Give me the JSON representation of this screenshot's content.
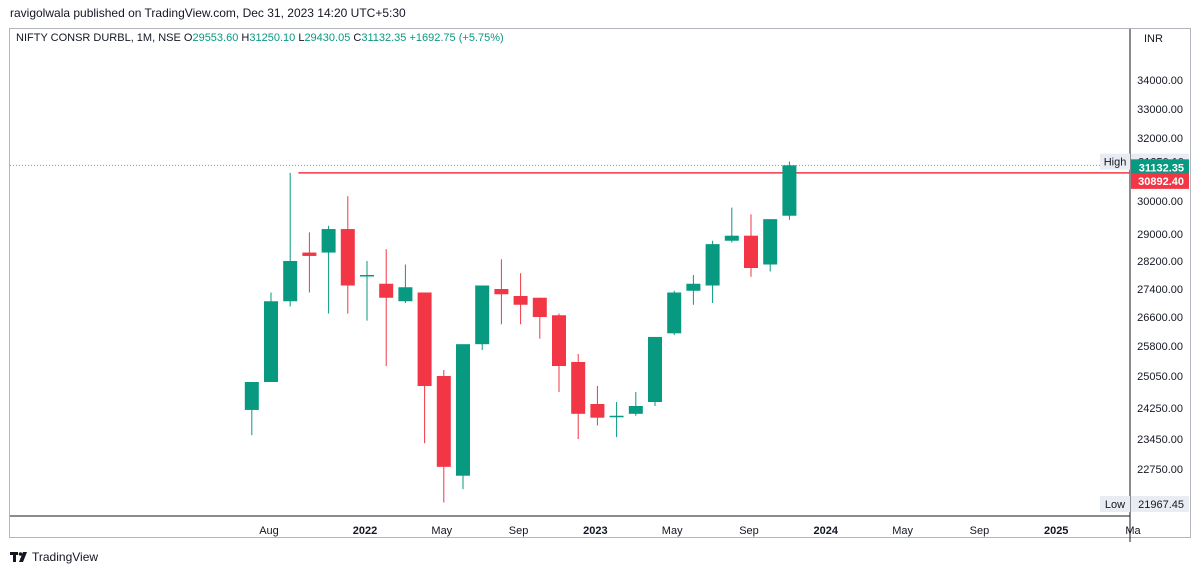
{
  "publisher_line": "ravigolwala published on TradingView.com, Dec 31, 2023 14:20 UTC+5:30",
  "legend": {
    "symbol": "NIFTY CONSR DURBL, 1M, NSE",
    "open_label": "O",
    "open_value": "29553.60",
    "high_label": "H",
    "high_value": "31250.10",
    "low_label": "L",
    "low_value": "29430.05",
    "close_label": "C",
    "close_value": "31132.35",
    "change": "+1692.75 (+5.75%)"
  },
  "currency": "INR",
  "brand": "TradingView",
  "chart_data": {
    "type": "candlestick",
    "interval": "1M",
    "colors": {
      "up": "#089981",
      "down": "#f23645",
      "level_line": "#f23645",
      "grid_dotted": "#089981"
    },
    "y_ticks": [
      "34000.00",
      "33000.00",
      "32000.00",
      "30000.00",
      "29000.00",
      "28200.00",
      "27400.00",
      "26600.00",
      "25800.00",
      "25050.00",
      "24250.00",
      "23450.00",
      "22750.00"
    ],
    "x_ticks": [
      {
        "label": "Aug",
        "date": "2021-08",
        "bold": false
      },
      {
        "label": "2022",
        "date": "2022-01",
        "bold": true
      },
      {
        "label": "May",
        "date": "2022-05",
        "bold": false
      },
      {
        "label": "Sep",
        "date": "2022-09",
        "bold": false
      },
      {
        "label": "2023",
        "date": "2023-01",
        "bold": true
      },
      {
        "label": "May",
        "date": "2023-05",
        "bold": false
      },
      {
        "label": "Sep",
        "date": "2023-09",
        "bold": false
      },
      {
        "label": "2024",
        "date": "2024-01",
        "bold": true
      },
      {
        "label": "May",
        "date": "2024-05",
        "bold": false
      },
      {
        "label": "Sep",
        "date": "2024-09",
        "bold": false
      },
      {
        "label": "2025",
        "date": "2025-01",
        "bold": true
      },
      {
        "label": "Ma",
        "date": "2025-05",
        "bold": false
      }
    ],
    "price_labels": {
      "high": {
        "label": "High",
        "value": "31250.10",
        "price": 31250.1
      },
      "last": {
        "value": "31132.35",
        "price": 31132.35,
        "color": "#089981"
      },
      "level": {
        "value": "30892.40",
        "price": 30892.4,
        "color": "#f23645"
      },
      "low": {
        "label": "Low",
        "value": "21967.45",
        "price": 21967.45
      }
    },
    "level_line": {
      "price": 30892.4,
      "from": "2021-10"
    },
    "candles": [
      {
        "date": "2021-07",
        "o": 24200,
        "h": 24900,
        "l": 23550,
        "c": 24900
      },
      {
        "date": "2021-08",
        "o": 24900,
        "h": 27300,
        "l": 24900,
        "c": 27050
      },
      {
        "date": "2021-09",
        "o": 27050,
        "h": 30892.4,
        "l": 26900,
        "c": 28200
      },
      {
        "date": "2021-10",
        "o": 28450,
        "h": 29050,
        "l": 27300,
        "c": 28350
      },
      {
        "date": "2021-11",
        "o": 28450,
        "h": 29250,
        "l": 26700,
        "c": 29150
      },
      {
        "date": "2021-12",
        "o": 29150,
        "h": 30150,
        "l": 26700,
        "c": 27500
      },
      {
        "date": "2022-01",
        "o": 27800,
        "h": 28200,
        "l": 26500,
        "c": 27800
      },
      {
        "date": "2022-02",
        "o": 27550,
        "h": 28550,
        "l": 25300,
        "c": 27150
      },
      {
        "date": "2022-03",
        "o": 27050,
        "h": 28100,
        "l": 27000,
        "c": 27450
      },
      {
        "date": "2022-04",
        "o": 27300,
        "h": 27300,
        "l": 23350,
        "c": 24800
      },
      {
        "date": "2022-05",
        "o": 25050,
        "h": 25200,
        "l": 22000,
        "c": 22800
      },
      {
        "date": "2022-06",
        "o": 22600,
        "h": 25800,
        "l": 22300,
        "c": 25850
      },
      {
        "date": "2022-07",
        "o": 25850,
        "h": 27500,
        "l": 25700,
        "c": 27500
      },
      {
        "date": "2022-08",
        "o": 27400,
        "h": 28250,
        "l": 26400,
        "c": 27250
      },
      {
        "date": "2022-09",
        "o": 27200,
        "h": 27850,
        "l": 26400,
        "c": 26950
      },
      {
        "date": "2022-10",
        "o": 27150,
        "h": 27150,
        "l": 26000,
        "c": 26600
      },
      {
        "date": "2022-11",
        "o": 26650,
        "h": 26700,
        "l": 24650,
        "c": 25300
      },
      {
        "date": "2022-12",
        "o": 25400,
        "h": 25600,
        "l": 23450,
        "c": 24100
      },
      {
        "date": "2023-01",
        "o": 24350,
        "h": 24800,
        "l": 23800,
        "c": 24000
      },
      {
        "date": "2023-02",
        "o": 24050,
        "h": 24400,
        "l": 23500,
        "c": 24050
      },
      {
        "date": "2023-03",
        "o": 24100,
        "h": 24650,
        "l": 24050,
        "c": 24300
      },
      {
        "date": "2023-04",
        "o": 24400,
        "h": 26050,
        "l": 24300,
        "c": 26050
      },
      {
        "date": "2023-05",
        "o": 26150,
        "h": 27350,
        "l": 26100,
        "c": 27300
      },
      {
        "date": "2023-06",
        "o": 27350,
        "h": 27800,
        "l": 26950,
        "c": 27550
      },
      {
        "date": "2023-07",
        "o": 27500,
        "h": 28800,
        "l": 27000,
        "c": 28700
      },
      {
        "date": "2023-08",
        "o": 28800,
        "h": 29800,
        "l": 28750,
        "c": 28950
      },
      {
        "date": "2023-09",
        "o": 28950,
        "h": 29600,
        "l": 27750,
        "c": 28000
      },
      {
        "date": "2023-10",
        "o": 28100,
        "h": 29450,
        "l": 27900,
        "c": 29450
      },
      {
        "date": "2023-11",
        "o": 29553.6,
        "h": 31250.1,
        "l": 29430.05,
        "c": 31132.35
      }
    ]
  }
}
